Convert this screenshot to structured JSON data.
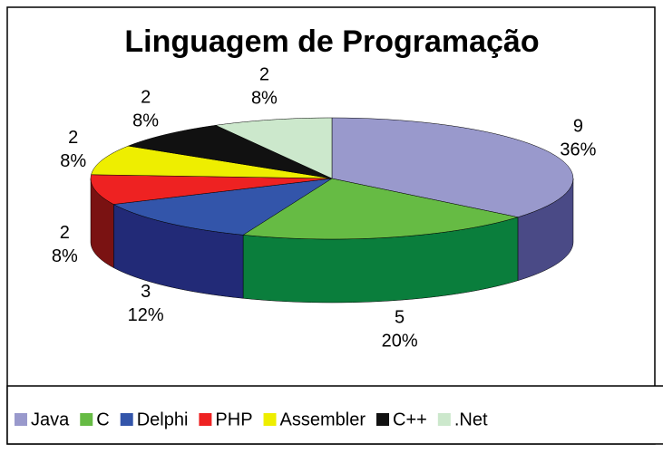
{
  "chart_data": {
    "type": "pie3d",
    "title": "Linguagem de Programação",
    "categories": [
      "Java",
      "C",
      "Delphi",
      "PHP",
      "Assembler",
      "C++",
      ".Net"
    ],
    "values": [
      9,
      5,
      3,
      2,
      2,
      2,
      2
    ],
    "percent_labels": [
      "36%",
      "20%",
      "12%",
      "8%",
      "8%",
      "8%",
      "8%"
    ],
    "colors": [
      "#9999cc",
      "#66bb44",
      "#3355aa",
      "#ee2222",
      "#eeee00",
      "#111111",
      "#cce8cc"
    ],
    "side_colors": [
      "#4a4a86",
      "#0a7e3c",
      "#222a77",
      "#7a1212",
      "#8a8a00",
      "#000000",
      "#8aa88a"
    ],
    "legend": "bottom"
  }
}
